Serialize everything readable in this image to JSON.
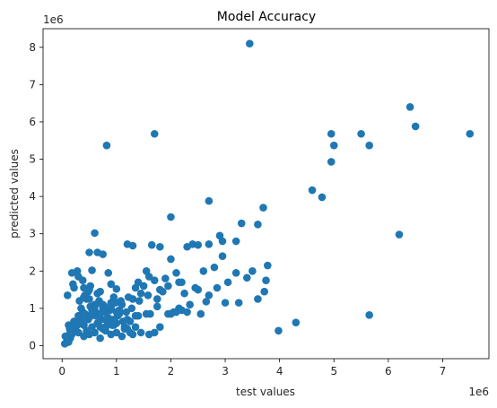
{
  "chart_data": {
    "type": "scatter",
    "title": "Model Accuracy",
    "xlabel": "test values",
    "ylabel": "predicted values",
    "x_multiplier_label": "1e6",
    "y_multiplier_label": "1e6",
    "x_scale": 1000000,
    "y_scale": 1000000,
    "xlim": [
      -0.35,
      7.85
    ],
    "ylim": [
      -0.35,
      8.5
    ],
    "xticks": [
      0,
      1,
      2,
      3,
      4,
      5,
      6,
      7
    ],
    "yticks": [
      0,
      1,
      2,
      3,
      4,
      5,
      6,
      7,
      8
    ],
    "grid": false,
    "color": "#1f77b4",
    "series": [
      {
        "x": [
          3.45,
          0.82,
          1.7,
          6.4,
          6.5,
          7.5,
          4.95,
          5.0,
          5.5,
          5.65,
          4.95,
          4.6,
          4.78,
          6.2,
          5.65,
          4.3,
          3.98,
          3.7,
          3.6,
          3.3,
          2.7,
          2.0,
          0.6,
          0.65,
          0.75,
          0.5,
          0.55,
          1.2,
          1.3,
          1.65,
          1.8,
          2.3,
          2.4,
          2.5,
          2.6,
          2.9,
          2.95,
          3.2,
          3.4,
          3.78,
          3.75,
          3.72,
          3.6,
          3.5,
          3.2,
          3.0,
          2.95,
          2.8,
          2.7,
          2.65,
          2.5,
          2.2,
          2.1,
          2.0,
          1.9,
          1.8,
          1.6,
          1.55,
          1.45,
          1.4,
          1.3,
          1.1,
          1.0,
          0.95,
          0.9,
          0.85,
          0.8,
          0.7,
          0.6,
          0.5,
          0.4,
          0.35,
          0.3,
          0.25,
          0.2,
          0.18,
          0.15,
          0.12,
          0.1,
          0.08,
          0.05,
          0.06,
          0.14,
          0.22,
          0.28,
          0.33,
          0.38,
          0.42,
          0.48,
          0.52,
          0.58,
          0.62,
          0.68,
          0.72,
          0.78,
          0.84,
          0.88,
          0.92,
          0.98,
          1.02,
          1.08,
          1.12,
          1.18,
          1.22,
          1.28,
          1.35,
          1.42,
          1.5,
          1.58,
          1.62,
          1.7,
          1.75,
          1.85,
          1.95,
          2.05,
          2.15,
          2.25,
          2.35,
          2.45,
          2.55,
          2.7,
          2.85,
          3.05,
          3.25,
          0.45,
          0.55,
          0.65,
          0.75,
          0.85,
          0.95,
          1.05,
          1.15,
          1.25,
          1.35,
          1.45,
          0.3,
          0.4,
          0.5,
          0.6,
          0.7,
          0.8,
          0.9,
          1.0,
          1.1,
          1.2,
          1.3,
          0.2,
          0.3,
          0.4,
          0.5,
          0.6,
          0.7,
          0.8,
          0.9,
          1.0,
          0.25,
          0.35,
          0.45,
          0.55,
          0.65,
          0.75,
          0.85,
          0.95,
          0.15,
          0.25,
          0.35,
          0.45,
          0.55,
          0.65,
          0.75,
          0.12,
          0.22,
          0.32,
          0.42,
          0.52,
          0.62,
          0.1,
          0.2,
          0.3,
          0.4,
          0.5,
          0.18,
          0.28,
          0.38,
          0.48,
          1.6,
          1.7,
          1.8,
          2.0,
          2.2,
          1.25,
          1.15,
          1.05,
          0.9,
          2.1,
          2.3,
          0.95,
          1.35,
          1.55,
          1.75,
          1.95,
          2.15,
          0.7,
          0.8,
          1.0,
          1.2,
          1.4
        ],
        "y": [
          8.1,
          5.37,
          5.68,
          6.4,
          5.88,
          5.68,
          5.68,
          5.37,
          5.68,
          5.37,
          4.93,
          4.17,
          3.98,
          2.98,
          0.82,
          0.62,
          0.4,
          3.7,
          3.25,
          3.28,
          3.88,
          3.45,
          3.02,
          2.5,
          2.45,
          2.5,
          2.02,
          2.72,
          2.68,
          2.7,
          2.65,
          2.65,
          2.72,
          2.7,
          2.0,
          2.95,
          2.8,
          2.8,
          1.82,
          2.15,
          1.75,
          1.45,
          1.25,
          2.0,
          1.95,
          1.15,
          2.4,
          2.1,
          2.72,
          1.18,
          1.5,
          1.7,
          1.95,
          2.32,
          1.8,
          1.5,
          1.85,
          2.0,
          1.4,
          1.7,
          1.25,
          1.1,
          1.52,
          1.3,
          1.65,
          1.95,
          0.9,
          1.45,
          1.1,
          1.25,
          1.55,
          1.0,
          0.8,
          0.6,
          0.4,
          0.3,
          0.2,
          0.1,
          0.15,
          0.08,
          0.05,
          0.25,
          0.45,
          0.65,
          0.55,
          0.75,
          0.9,
          0.85,
          0.7,
          1.05,
          0.95,
          0.8,
          1.2,
          0.7,
          1.05,
          0.6,
          0.95,
          0.55,
          1.15,
          0.8,
          1.2,
          0.65,
          0.9,
          1.3,
          1.0,
          1.55,
          1.2,
          1.6,
          1.35,
          0.85,
          1.75,
          1.25,
          1.45,
          1.6,
          0.9,
          1.7,
          1.4,
          1.1,
          1.55,
          0.85,
          1.35,
          1.55,
          1.7,
          1.15,
          0.4,
          0.5,
          0.6,
          0.45,
          0.7,
          0.55,
          0.85,
          0.45,
          0.65,
          0.5,
          0.35,
          0.35,
          0.25,
          0.3,
          0.35,
          0.2,
          0.4,
          0.3,
          0.35,
          0.25,
          0.45,
          0.3,
          0.45,
          0.6,
          0.55,
          0.75,
          0.95,
          0.85,
          0.7,
          1.0,
          0.9,
          0.55,
          0.65,
          0.8,
          0.95,
          0.6,
          1.1,
          0.75,
          0.7,
          0.35,
          0.5,
          0.65,
          1.25,
          0.85,
          1.4,
          1.0,
          0.55,
          1.55,
          1.2,
          1.35,
          1.6,
          1.1,
          1.35,
          1.65,
          1.85,
          1.3,
          1.5,
          1.95,
          2.0,
          1.75,
          1.45,
          0.3,
          0.35,
          0.5,
          0.85,
          0.95,
          0.35,
          0.5,
          0.95,
          1.15,
          0.9,
          0.9,
          1.15,
          0.8,
          0.85,
          1.05,
          0.85,
          1.0,
          0.5,
          0.5,
          0.6,
          0.7,
          0.8
        ]
      }
    ]
  }
}
